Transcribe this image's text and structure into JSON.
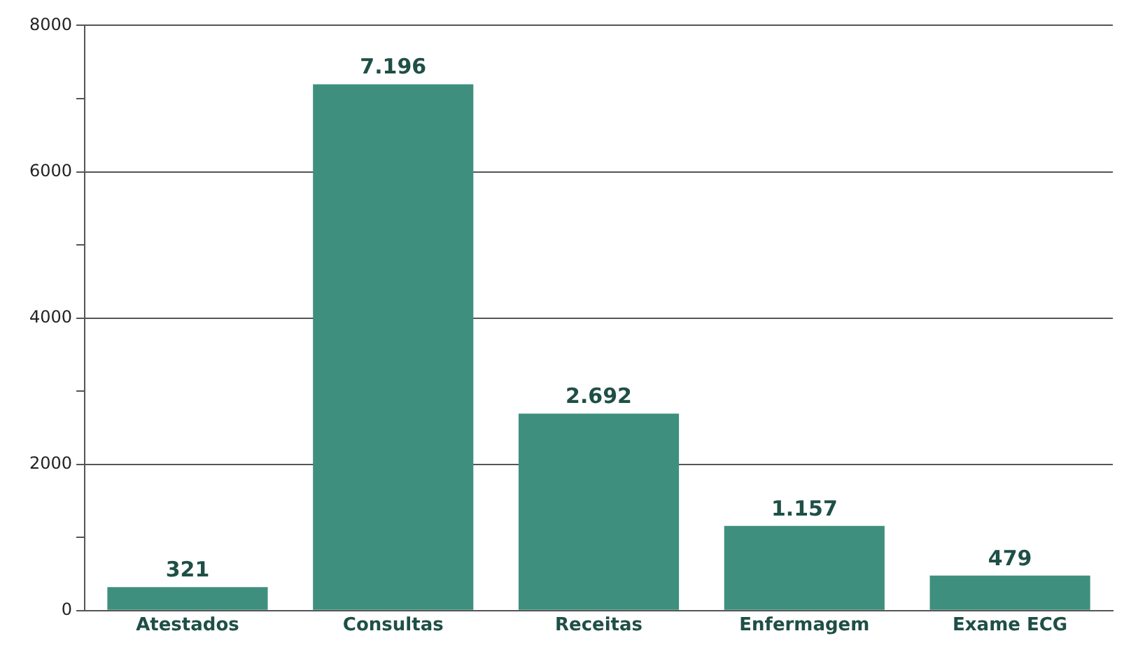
{
  "chart_data": {
    "type": "bar",
    "categories": [
      "Atestados",
      "Consultas",
      "Receitas",
      "Enfermagem",
      "Exame ECG"
    ],
    "values": [
      321,
      7196,
      2692,
      1157,
      479
    ],
    "value_labels": [
      "321",
      "7.196",
      "2.692",
      "1.157",
      "479"
    ],
    "color": "#3f8f7e",
    "ylim": [
      0,
      8000
    ],
    "yticks": [
      0,
      {
        "value": 1000,
        "label": null
      },
      2000,
      {
        "value": 3000,
        "label": null
      },
      4000,
      {
        "value": 5000,
        "label": null
      },
      6000,
      {
        "value": 7000,
        "label": null
      },
      8000
    ],
    "grid": "y"
  }
}
